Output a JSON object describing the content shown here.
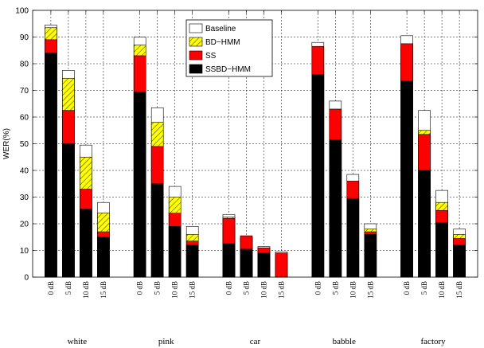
{
  "chart_data": {
    "type": "bar",
    "ylabel": "WER(%)",
    "ylim": [
      0,
      100
    ],
    "yticks": [
      0,
      10,
      20,
      30,
      40,
      50,
      60,
      70,
      80,
      90,
      100
    ],
    "grid": true,
    "legend_position": "top-center",
    "groups": [
      "white",
      "pink",
      "car",
      "babble",
      "factory"
    ],
    "conditions": [
      "0 dB",
      "5 dB",
      "10 dB",
      "15 dB"
    ],
    "series": [
      {
        "name": "Baseline",
        "color": "#ffffff",
        "pattern": "none",
        "values": [
          [
            94.5,
            77.5,
            49.5,
            28
          ],
          [
            90,
            63.5,
            34,
            19
          ],
          [
            23.5,
            15,
            11.5,
            9.5
          ],
          [
            88,
            66,
            38.5,
            20
          ],
          [
            90.5,
            62.5,
            32.5,
            18
          ]
        ]
      },
      {
        "name": "BD−HMM",
        "color": "#ffff00",
        "pattern": "hatch",
        "values": [
          [
            93.5,
            74.5,
            45,
            24
          ],
          [
            87,
            58,
            30,
            16
          ],
          [
            22.5,
            15,
            10,
            7.5
          ],
          [
            80,
            55,
            31.5,
            18
          ],
          [
            86,
            55,
            28,
            16
          ]
        ]
      },
      {
        "name": "SS",
        "color": "#ff0000",
        "pattern": "none",
        "values": [
          [
            89,
            62.5,
            33,
            17
          ],
          [
            83,
            49,
            24,
            13.5
          ],
          [
            22,
            15.5,
            11,
            9
          ],
          [
            86.5,
            63,
            36,
            17
          ],
          [
            87.5,
            53.5,
            25,
            14.5
          ]
        ]
      },
      {
        "name": "SSBD−HMM",
        "color": "#000000",
        "pattern": "none",
        "values": [
          [
            84,
            50,
            25.5,
            15
          ],
          [
            69.5,
            35,
            19,
            12
          ],
          [
            12.5,
            10.5,
            9,
            0
          ],
          [
            76,
            51.5,
            29.5,
            16
          ],
          [
            73.5,
            40,
            20.5,
            12
          ]
        ]
      }
    ]
  }
}
